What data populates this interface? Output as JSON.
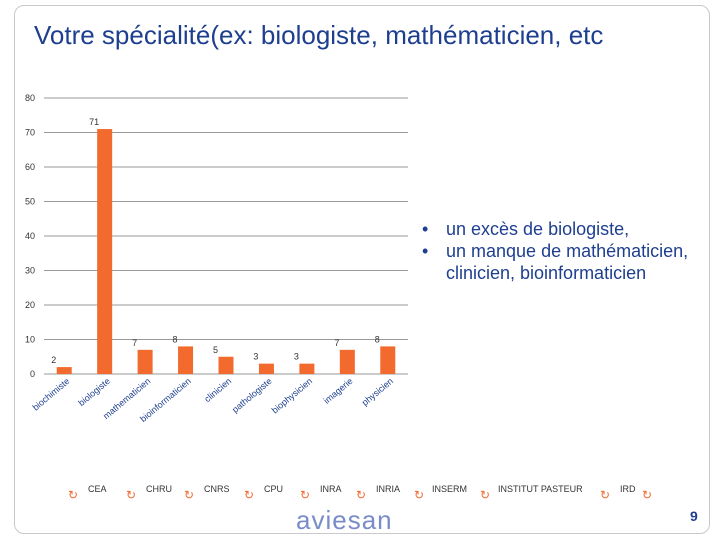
{
  "title": "Votre spécialité(ex: biologiste, mathématicien, etc",
  "bullets": [
    "un excès de biologiste,",
    "un manque de mathématicien, clinicien, bioinformaticien"
  ],
  "colors": {
    "bar": "#f26a2e",
    "grid": "#9a9a9a",
    "title": "#1e3f8f"
  },
  "chart_data": {
    "type": "bar",
    "categories": [
      "biochimiste",
      "biologiste",
      "mathematicien",
      "bioinformaticien",
      "clinicien",
      "pathologiste",
      "biophysicien",
      "imagerie",
      "physicien"
    ],
    "category_labels": [
      "biochimiste",
      "biologiste",
      "mathematicien",
      "bioinformaticien",
      "clinicien",
      "pathologiste",
      "biophysicien",
      "imagerie",
      "physicien"
    ],
    "values": [
      2,
      71,
      7,
      8,
      5,
      3,
      3,
      7,
      8
    ],
    "ylim": [
      0,
      80
    ],
    "yticks": [
      0,
      10,
      20,
      30,
      40,
      50,
      60,
      70,
      80
    ],
    "grid": true
  },
  "footer": {
    "links": [
      "CEA",
      "CHRU",
      "CNRS",
      "CPU",
      "INRA",
      "INRIA",
      "INSERM",
      "INSTITUT PASTEUR",
      "IRD"
    ],
    "logo": "aviesan",
    "page": "9"
  }
}
